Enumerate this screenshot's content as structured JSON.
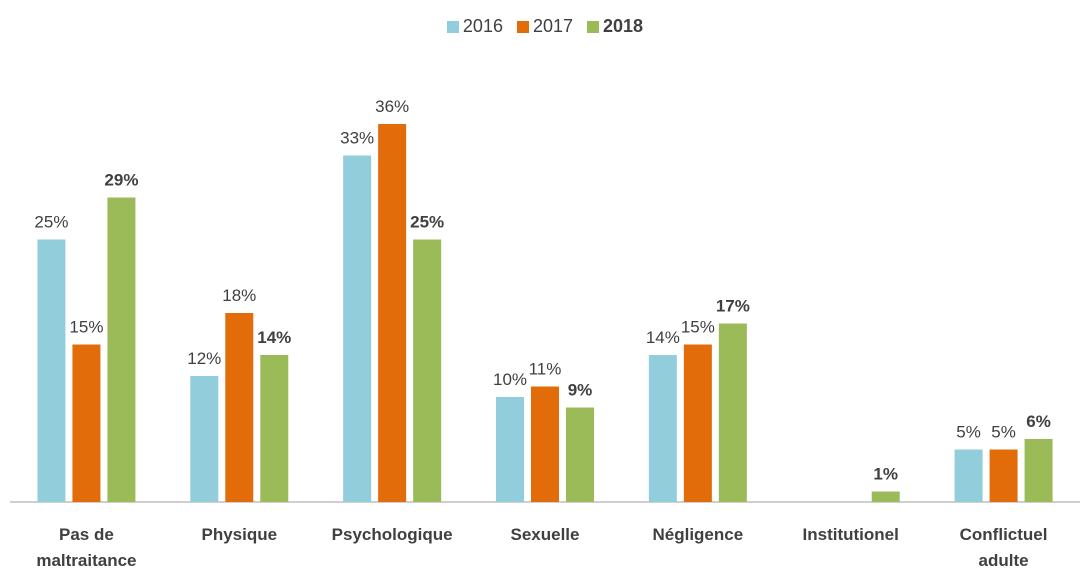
{
  "chart_data": {
    "type": "bar",
    "categories": [
      "Pas de maltraitance",
      "Physique",
      "Psychologique",
      "Sexuelle",
      "Négligence",
      "Institutionel",
      "Conflictuel adulte"
    ],
    "series": [
      {
        "name": "2016",
        "color": "#92cddc",
        "values": [
          25,
          12,
          33,
          10,
          14,
          null,
          5
        ],
        "value_labels": [
          "25%",
          "12%",
          "33%",
          "10%",
          "14%",
          null,
          "5%"
        ]
      },
      {
        "name": "2017",
        "color": "#e36c0a",
        "values": [
          15,
          18,
          36,
          11,
          15,
          null,
          5
        ],
        "value_labels": [
          "15%",
          "18%",
          "36%",
          "11%",
          "15%",
          null,
          "5%"
        ]
      },
      {
        "name": "2018",
        "color": "#9bbb59",
        "values": [
          29,
          14,
          25,
          9,
          17,
          1,
          6
        ],
        "value_labels": [
          "29%",
          "14%",
          "25%",
          "9%",
          "17%",
          "1%",
          "6%"
        ]
      }
    ]
  }
}
